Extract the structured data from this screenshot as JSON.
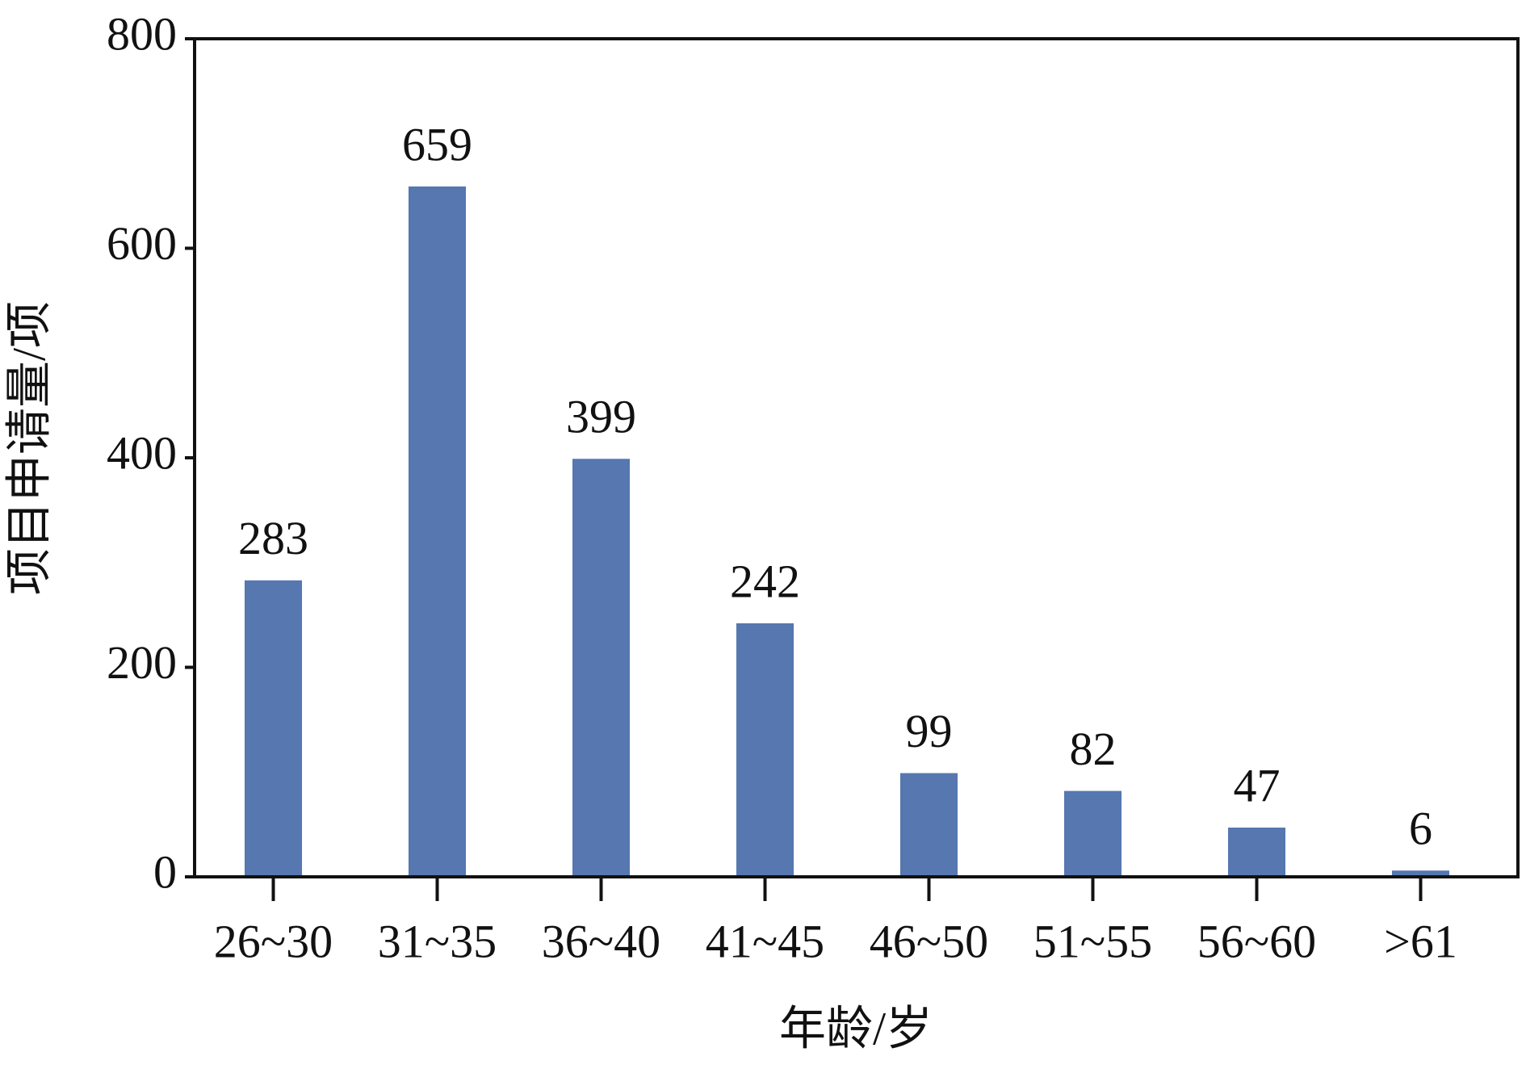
{
  "chart_data": {
    "type": "bar",
    "x_label": "年龄/岁",
    "y_label": "项目申请量/项",
    "categories": [
      "26~30",
      "31~35",
      "36~40",
      "41~45",
      "46~50",
      "51~55",
      "56~60",
      ">61"
    ],
    "values": [
      283,
      659,
      399,
      242,
      99,
      82,
      47,
      6
    ],
    "color": "#5677b0",
    "ylim": [
      0,
      800
    ],
    "yticks": [
      0,
      200,
      400,
      600,
      800
    ],
    "grid": false
  }
}
